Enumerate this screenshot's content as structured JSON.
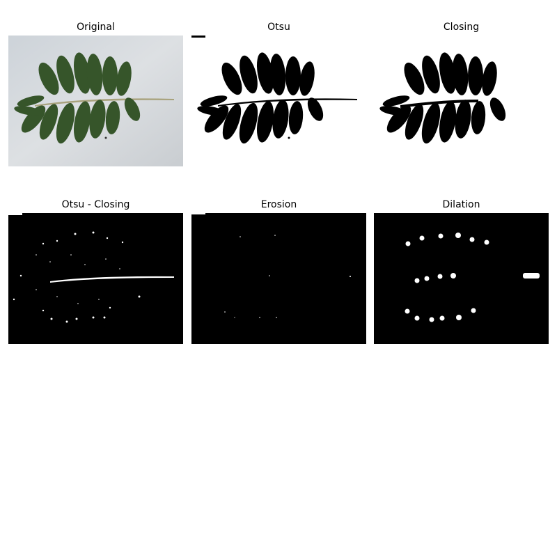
{
  "figure": {
    "panels": [
      {
        "title": "Original"
      },
      {
        "title": "Otsu"
      },
      {
        "title": "Closing"
      },
      {
        "title": "Otsu - Closing"
      },
      {
        "title": "Erosion"
      },
      {
        "title": "Dilation"
      }
    ]
  },
  "colors": {
    "background": "#ffffff",
    "photo_background": "#d4d8dc",
    "leaf": "#36552a",
    "stem": "#a8a27c",
    "mask_black": "#000000",
    "mask_white": "#ffffff"
  }
}
